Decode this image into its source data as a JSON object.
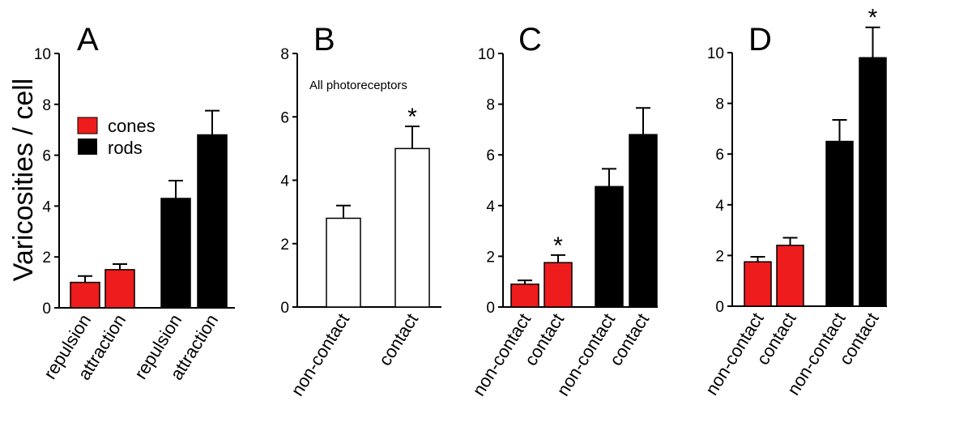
{
  "ylabel": "Varicosities / cell",
  "colors": {
    "cones": "#ee1c1c",
    "rods": "#000000",
    "all": "#ffffff"
  },
  "legend": {
    "placement": "top-left of panel A",
    "items": [
      {
        "label": "cones",
        "color": "#ee1c1c"
      },
      {
        "label": "rods",
        "color": "#000000"
      }
    ]
  },
  "chart_data": [
    {
      "type": "bar",
      "panel_label": "A",
      "ylim": [
        0,
        10
      ],
      "yticks": [
        "0",
        "2",
        "4",
        "6",
        "8",
        "10"
      ],
      "categories": [
        "repulsion",
        "attraction",
        "repulsion",
        "attraction"
      ],
      "groups": [
        "cones",
        "cones",
        "rods",
        "rods"
      ],
      "values": [
        1.0,
        1.5,
        4.3,
        6.8
      ],
      "errors": [
        0.25,
        0.22,
        0.7,
        0.95
      ],
      "significance": [
        "",
        "",
        "",
        ""
      ]
    },
    {
      "type": "bar",
      "panel_label": "B",
      "ylim": [
        0,
        8
      ],
      "yticks": [
        "0",
        "2",
        "4",
        "6",
        "8"
      ],
      "annotation": "All photoreceptors",
      "categories": [
        "non-contact",
        "contact"
      ],
      "groups": [
        "all",
        "all"
      ],
      "values": [
        2.8,
        5.0
      ],
      "errors": [
        0.4,
        0.7
      ],
      "significance": [
        "",
        "*"
      ]
    },
    {
      "type": "bar",
      "panel_label": "C",
      "ylim": [
        0,
        10
      ],
      "yticks": [
        "0",
        "2",
        "4",
        "6",
        "8",
        "10"
      ],
      "categories": [
        "non-contact",
        "contact",
        "non-contact",
        "contact"
      ],
      "groups": [
        "cones",
        "cones",
        "rods",
        "rods"
      ],
      "values": [
        0.9,
        1.75,
        4.75,
        6.8
      ],
      "errors": [
        0.15,
        0.3,
        0.7,
        1.05
      ],
      "significance": [
        "",
        "*",
        "",
        ""
      ]
    },
    {
      "type": "bar",
      "panel_label": "D",
      "ylim": [
        0,
        10
      ],
      "yticks": [
        "0",
        "2",
        "4",
        "6",
        "8",
        "10"
      ],
      "categories": [
        "non-contact",
        "contact",
        "non-contact",
        "contact"
      ],
      "groups": [
        "cones",
        "cones",
        "rods",
        "rods"
      ],
      "values": [
        1.75,
        2.4,
        6.5,
        9.8
      ],
      "errors": [
        0.2,
        0.3,
        0.85,
        1.2
      ],
      "significance": [
        "",
        "",
        "",
        "*"
      ]
    }
  ]
}
